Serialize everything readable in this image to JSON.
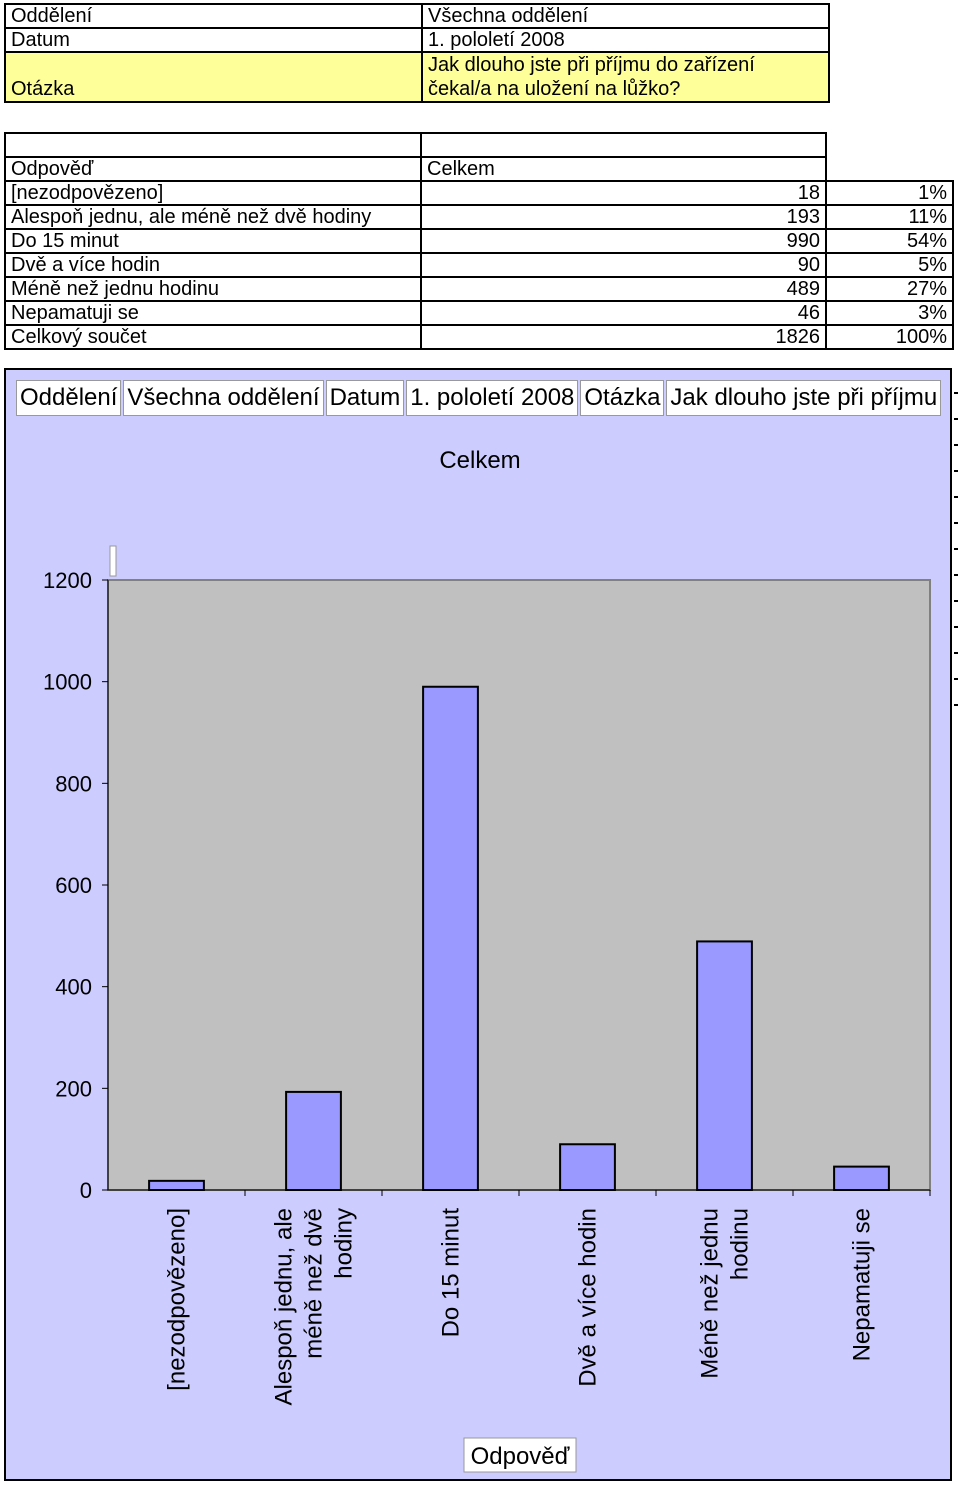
{
  "filters": {
    "department_label": "Oddělení",
    "department_value": "Všechna oddělení",
    "date_label": "Datum",
    "date_value": "1. pololetí 2008",
    "question_label": "Otázka",
    "question_line1": "Jak dlouho jste při příjmu do zařízení",
    "question_line2": "čekal/a na uložení na lůžko?"
  },
  "table": {
    "col_answer": "Odpověď",
    "col_total": "Celkem",
    "rows": [
      {
        "label": "[nezodpovězeno]",
        "count": "18",
        "pct": "1%"
      },
      {
        "label": "Alespoň jednu, ale méně než dvě hodiny",
        "count": "193",
        "pct": "11%"
      },
      {
        "label": "Do 15 minut",
        "count": "990",
        "pct": "54%"
      },
      {
        "label": "Dvě a více hodin",
        "count": "90",
        "pct": "5%"
      },
      {
        "label": "Méně než jednu hodinu",
        "count": "489",
        "pct": "27%"
      },
      {
        "label": "Nepamatuji se",
        "count": "46",
        "pct": "3%"
      },
      {
        "label": "Celkový součet",
        "count": "1826",
        "pct": "100%"
      }
    ]
  },
  "pivot_fields": [
    "Oddělení",
    "Všechna oddělení",
    "Datum",
    "1. pololetí 2008",
    "Otázka",
    "Jak dlouho jste při příjmu"
  ],
  "colors": {
    "panel_bg": "#ccccff",
    "plot_bg": "#c0c0c0",
    "bar_fill": "#9999ff",
    "header_yellow": "#ffff99"
  },
  "chart_data": {
    "type": "bar",
    "title": "Celkem",
    "xlabel": "Odpověď",
    "ylabel": "",
    "categories": [
      "[nezodpovězeno]",
      "Alespoň jednu, ale méně než dvě hodiny",
      "Do 15 minut",
      "Dvě a více hodin",
      "Méně než jednu hodinu",
      "Nepamatuji se"
    ],
    "category_lines": [
      [
        "[nezodpovězeno]"
      ],
      [
        "Alespoň jednu, ale",
        "méně než dvě",
        "hodiny"
      ],
      [
        "Do 15 minut"
      ],
      [
        "Dvě a více hodin"
      ],
      [
        "Méně než jednu",
        "hodinu"
      ],
      [
        "Nepamatuji se"
      ]
    ],
    "values": [
      18,
      193,
      990,
      90,
      489,
      46
    ],
    "ylim": [
      0,
      1200
    ],
    "yticks": [
      0,
      200,
      400,
      600,
      800,
      1000,
      1200
    ],
    "grid": false,
    "legend": "none"
  }
}
